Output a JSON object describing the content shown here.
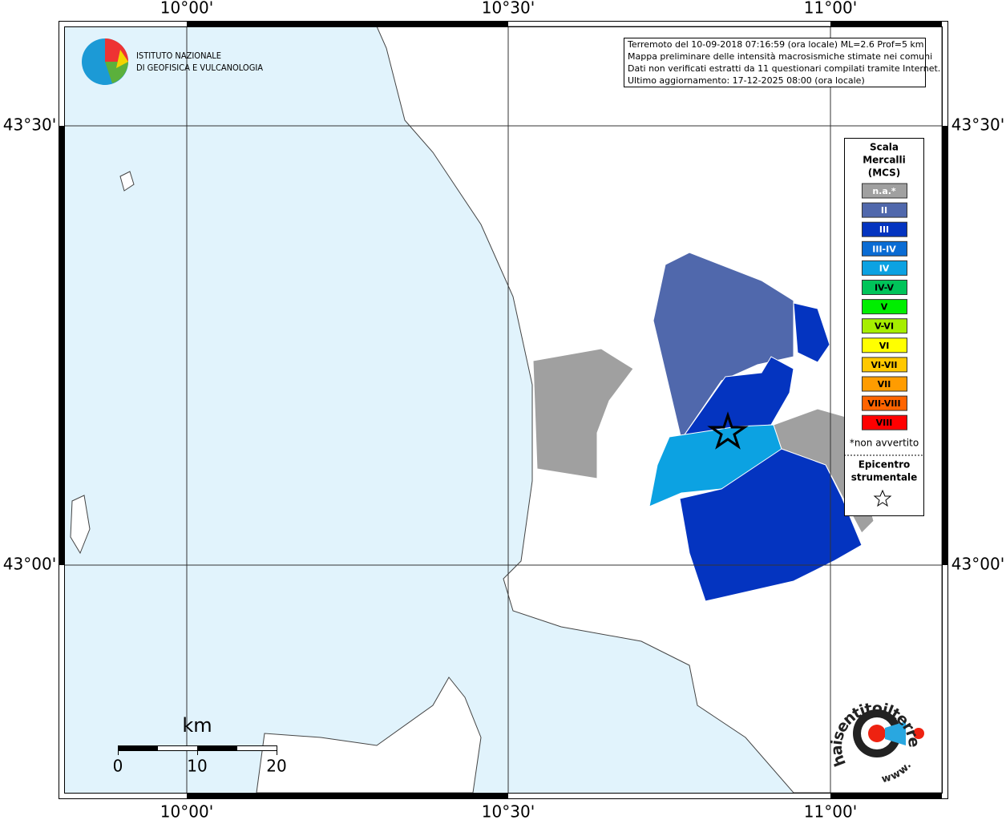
{
  "coordinate_labels": {
    "top": [
      "10°00'",
      "10°30'",
      "11°00'"
    ],
    "bottom": [
      "10°00'",
      "10°30'",
      "11°00'"
    ],
    "left": [
      "43°30'",
      "43°00'"
    ],
    "right": [
      "43°30'",
      "43°00'"
    ]
  },
  "info_box": [
    "Terremoto del 10-09-2018 07:16:59 (ora locale) ML=2.6 Prof=5 km",
    "Mappa preliminare delle intensità macrosismiche stimate nei comuni",
    "Dati non verificati estratti da 11 questionari compilati tramite Internet.",
    "Ultimo aggiornamento: 17-12-2025 08:00 (ora locale)"
  ],
  "institute": [
    "ISTITUTO NAZIONALE",
    "DI GEOFISICA E VULCANOLOGIA"
  ],
  "legend": {
    "title": [
      "Scala",
      "Mercalli",
      "(MCS)"
    ],
    "classes": [
      {
        "label": "n.a.*",
        "color": "#a0a0a0"
      },
      {
        "label": "II",
        "color": "#5068ac"
      },
      {
        "label": "III",
        "color": "#0434c0"
      },
      {
        "label": "III-IV",
        "color": "#0a6cd4"
      },
      {
        "label": "IV",
        "color": "#0ca2e2"
      },
      {
        "label": "IV-V",
        "color": "#00c45a"
      },
      {
        "label": "V",
        "color": "#00ee00"
      },
      {
        "label": "V-VI",
        "color": "#a6ee00"
      },
      {
        "label": "VI",
        "color": "#ffff00"
      },
      {
        "label": "VI-VII",
        "color": "#ffc800"
      },
      {
        "label": "VII",
        "color": "#ff9c00"
      },
      {
        "label": "VII-VIII",
        "color": "#ff6400"
      },
      {
        "label": "VIII",
        "color": "#ff0000"
      }
    ],
    "note": "*non avvertito",
    "epicenter": [
      "Epicentro",
      "strumentale"
    ]
  },
  "scale_bar": {
    "unit": "km",
    "ticks": [
      "0",
      "10",
      "20"
    ]
  },
  "watermark": {
    "site": "haisentitoilterremoto.it",
    "www": "www."
  }
}
